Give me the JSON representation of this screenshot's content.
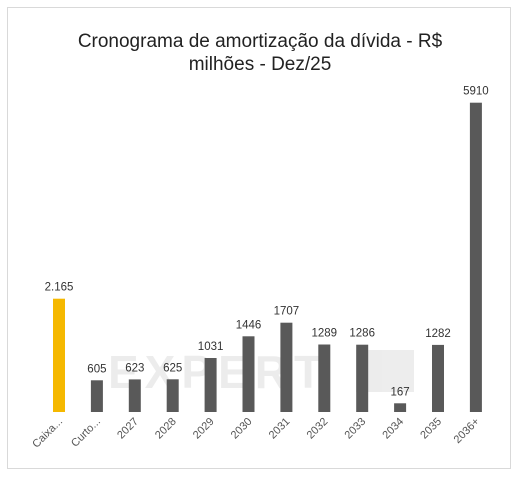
{
  "chart_data": {
    "type": "bar",
    "title_line1": "Cronograma de amortização da dívida - R$",
    "title_line2": "milhões - Dez/25",
    "categories": [
      "Caixa...",
      "Curto...",
      "2027",
      "2028",
      "2029",
      "2030",
      "2031",
      "2032",
      "2033",
      "2034",
      "2035",
      "2036+"
    ],
    "values": [
      2165,
      605,
      623,
      625,
      1031,
      1446,
      1707,
      1289,
      1286,
      167,
      1282,
      5910
    ],
    "value_labels": [
      "2.165",
      "605",
      "623",
      "625",
      "1031",
      "1446",
      "1707",
      "1289",
      "1286",
      "167",
      "1282",
      "5910"
    ],
    "ylim": [
      0,
      6000
    ],
    "grid": false,
    "legend": "none",
    "colors": {
      "highlight": "#F5B800",
      "bar": "#595959",
      "label": "#555555"
    }
  }
}
